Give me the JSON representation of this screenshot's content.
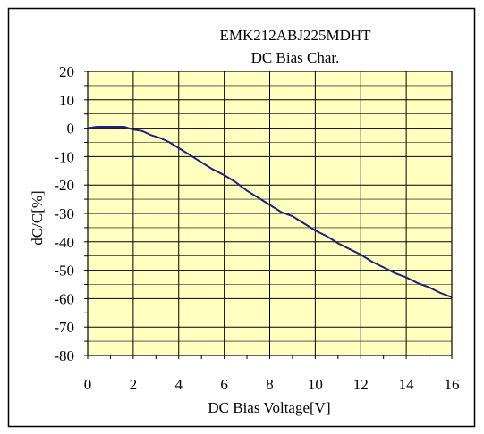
{
  "chart_data": {
    "type": "line",
    "title": "EMK212ABJ225MDHT",
    "subtitle": "DC Bias Char.",
    "xlabel": "DC Bias Voltage[V]",
    "ylabel": "dC/C[%]",
    "xlim": [
      0,
      16
    ],
    "ylim": [
      -80,
      20
    ],
    "x_ticks": [
      "0",
      "2",
      "4",
      "6",
      "8",
      "10",
      "12",
      "14",
      "16"
    ],
    "y_ticks": [
      "20",
      "10",
      "0",
      "-10",
      "-20",
      "-30",
      "-40",
      "-50",
      "-60",
      "-70",
      "-80"
    ],
    "x_minor_step": 1,
    "y_minor_step": 5,
    "grid": true,
    "legend": "none",
    "colors": {
      "plot_background": "#ffffc0",
      "line": "#1a237e",
      "grid": "#000000",
      "frame": "#000000"
    },
    "series": [
      {
        "x": [
          0,
          0.4,
          0.8,
          1.2,
          1.6,
          2.0,
          2.4,
          2.8,
          3.2,
          3.6,
          4.0,
          4.5,
          5.0,
          5.5,
          6.0,
          6.5,
          7.0,
          7.5,
          8.0,
          8.5,
          9.0,
          9.5,
          10.0,
          10.5,
          11.0,
          11.5,
          12.0,
          12.5,
          13.0,
          13.5,
          14.0,
          14.5,
          15.0,
          15.5,
          16.0
        ],
        "y": [
          0,
          0.5,
          0.5,
          0.5,
          0.5,
          -0.5,
          -1,
          -2.5,
          -3.5,
          -5,
          -7,
          -9.5,
          -12,
          -14.5,
          -16.5,
          -19,
          -22,
          -24.5,
          -27,
          -29.5,
          -31,
          -33.5,
          -36,
          -38,
          -40.5,
          -42.5,
          -44.5,
          -47,
          -49,
          -51,
          -52.5,
          -54.5,
          -56,
          -58,
          -59.5
        ]
      }
    ]
  }
}
